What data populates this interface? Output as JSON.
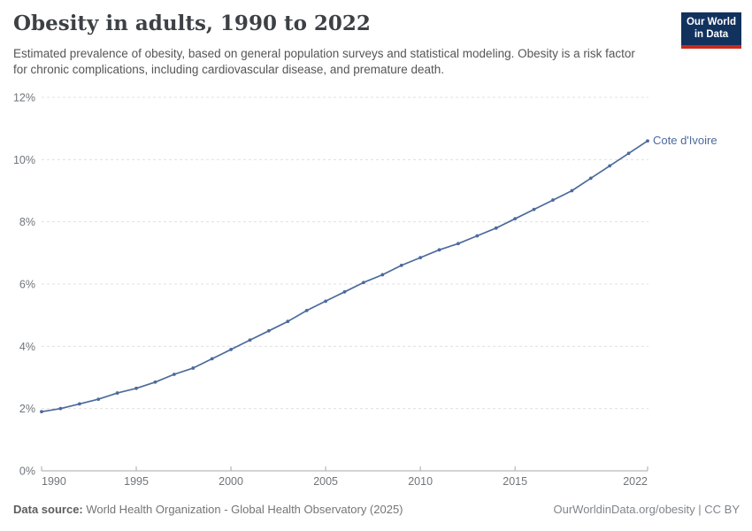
{
  "header": {
    "title": "Obesity in adults, 1990 to 2022",
    "subtitle": "Estimated prevalence of obesity, based on general population surveys and statistical modeling. Obesity is a risk factor for chronic complications, including cardiovascular disease, and premature death."
  },
  "logo": {
    "line1": "Our World",
    "line2": "in Data",
    "bg_color": "#12325e",
    "stripe_color": "#c72a1d"
  },
  "footer": {
    "source_label": "Data source:",
    "source_text": " World Health Organization - Global Health Observatory (2025)",
    "link_text": "OurWorldinData.org/obesity | CC BY"
  },
  "chart_data": {
    "type": "line",
    "title": "Obesity in adults, 1990 to 2022",
    "xlabel": "",
    "ylabel": "",
    "x": [
      1990,
      1991,
      1992,
      1993,
      1994,
      1995,
      1996,
      1997,
      1998,
      1999,
      2000,
      2001,
      2002,
      2003,
      2004,
      2005,
      2006,
      2007,
      2008,
      2009,
      2010,
      2011,
      2012,
      2013,
      2014,
      2015,
      2016,
      2017,
      2018,
      2019,
      2020,
      2021,
      2022
    ],
    "series": [
      {
        "name": "Cote d'Ivoire",
        "color": "#4c6a9c",
        "values": [
          1.9,
          2.0,
          2.15,
          2.3,
          2.5,
          2.65,
          2.85,
          3.1,
          3.3,
          3.6,
          3.9,
          4.2,
          4.5,
          4.8,
          5.15,
          5.45,
          5.75,
          6.05,
          6.3,
          6.6,
          6.85,
          7.1,
          7.3,
          7.55,
          7.8,
          8.1,
          8.4,
          8.7,
          9.0,
          9.4,
          9.8,
          10.2,
          10.6
        ]
      }
    ],
    "ylim": [
      0,
      12
    ],
    "yticks": [
      0,
      2,
      4,
      6,
      8,
      10,
      12
    ],
    "ytick_suffix": "%",
    "xticks": [
      1990,
      1995,
      2000,
      2005,
      2010,
      2015,
      2022
    ],
    "grid": "horizontal-dashed",
    "legend_position": "line-end-label",
    "colors": {
      "gridline": "#e0e0e0",
      "axis_line": "#a9a9a9",
      "tick_label": "#70757a",
      "series_label": "#4c6a9c"
    }
  }
}
